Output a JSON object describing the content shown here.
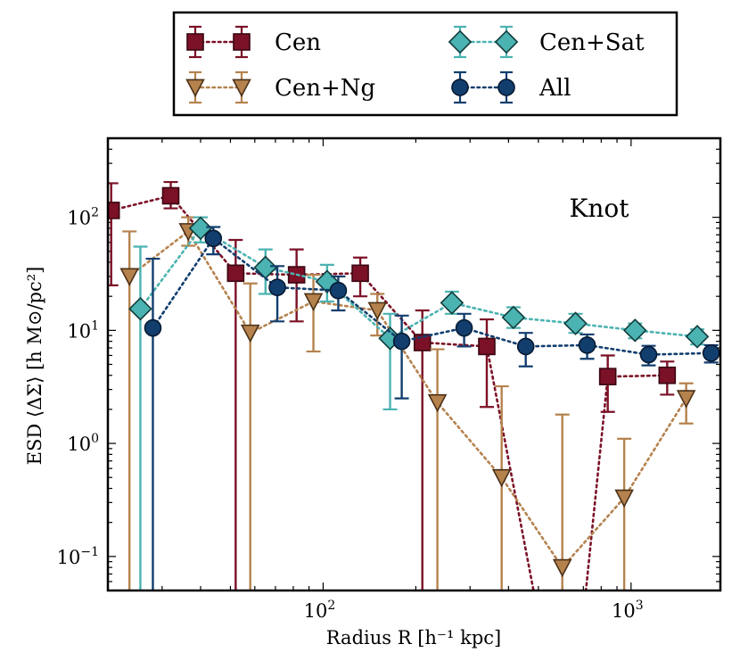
{
  "chart_data": {
    "type": "scatter",
    "title": "",
    "annotation": "Knot",
    "xlabel": "Radius R [h⁻¹ kpc]",
    "ylabel": "ESD ⟨ΔΣ⟩ [h M⊙/pc²]",
    "xscale": "log",
    "yscale": "log",
    "xlim": [
      20,
      1950
    ],
    "ylim": [
      0.05,
      500
    ],
    "x_tick_labels": [
      {
        "value": 100,
        "base": "10",
        "exp": "2"
      },
      {
        "value": 1000,
        "base": "10",
        "exp": "3"
      }
    ],
    "y_tick_labels": [
      {
        "value": 0.1,
        "base": "10",
        "exp": "−1"
      },
      {
        "value": 1,
        "base": "10",
        "exp": "0"
      },
      {
        "value": 10,
        "base": "10",
        "exp": "1"
      },
      {
        "value": 100,
        "base": "10",
        "exp": "2"
      }
    ],
    "legend_position": "top, outside plot",
    "series": [
      {
        "name": "Cen",
        "marker": "square",
        "color": "#7b1126",
        "edge": "#3a0612",
        "points": [
          {
            "x": 20.5,
            "y": 115,
            "lo": 25,
            "hi": 200
          },
          {
            "x": 32,
            "y": 155,
            "lo": 120,
            "hi": 205
          },
          {
            "x": 52,
            "y": 32,
            "lo": 0.02,
            "hi": 63
          },
          {
            "x": 82,
            "y": 31,
            "lo": 12,
            "hi": 52
          },
          {
            "x": 132,
            "y": 32,
            "lo": 20,
            "hi": 44
          },
          {
            "x": 210,
            "y": 7.8,
            "lo": 0.02,
            "hi": 15
          },
          {
            "x": 340,
            "y": 7.2,
            "lo": 2.1,
            "hi": 12.5
          },
          {
            "x": 840,
            "y": 3.9,
            "lo": 1.9,
            "hi": 6
          },
          {
            "x": 1310,
            "y": 4,
            "lo": 2.7,
            "hi": 5.3
          }
        ],
        "line": [
          [
            20.5,
            115
          ],
          [
            32,
            155
          ],
          [
            52,
            32
          ],
          [
            82,
            31
          ],
          [
            132,
            32
          ],
          [
            210,
            7.8
          ],
          [
            340,
            7.2
          ],
          [
            500,
            0.03
          ],
          [
            700,
            0.03
          ],
          [
            840,
            3.9
          ],
          [
            1310,
            4
          ]
        ]
      },
      {
        "name": "Cen+Ng",
        "marker": "triangle-down",
        "color": "#b5824e",
        "edge": "#4a3017",
        "points": [
          {
            "x": 23.5,
            "y": 30,
            "lo": 0.02,
            "hi": 75
          },
          {
            "x": 36.5,
            "y": 75,
            "lo": 56,
            "hi": 100
          },
          {
            "x": 58,
            "y": 9.5,
            "lo": 0.02,
            "hi": 26
          },
          {
            "x": 93,
            "y": 18,
            "lo": 6.5,
            "hi": 31
          },
          {
            "x": 150,
            "y": 15,
            "lo": 9,
            "hi": 21
          },
          {
            "x": 235,
            "y": 2.3,
            "lo": 0.02,
            "hi": 6.8
          },
          {
            "x": 380,
            "y": 0.5,
            "lo": 0.02,
            "hi": 3.2
          },
          {
            "x": 598,
            "y": 0.08,
            "lo": 0.02,
            "hi": 1.8
          },
          {
            "x": 950,
            "y": 0.33,
            "lo": 0.02,
            "hi": 1.1
          },
          {
            "x": 1510,
            "y": 2.5,
            "lo": 1.5,
            "hi": 3.4
          }
        ],
        "line": [
          [
            23.5,
            30
          ],
          [
            36.5,
            75
          ],
          [
            58,
            9.5
          ],
          [
            93,
            18
          ],
          [
            150,
            15
          ],
          [
            235,
            2.3
          ],
          [
            380,
            0.5
          ],
          [
            598,
            0.08
          ],
          [
            950,
            0.33
          ],
          [
            1510,
            2.5
          ]
        ]
      },
      {
        "name": "Cen+Sat",
        "marker": "diamond",
        "color": "#4bb3b2",
        "edge": "#123c3c",
        "points": [
          {
            "x": 25.5,
            "y": 15.5,
            "lo": 0.02,
            "hi": 55
          },
          {
            "x": 40,
            "y": 80,
            "lo": 60,
            "hi": 100
          },
          {
            "x": 65,
            "y": 36,
            "lo": 21,
            "hi": 52
          },
          {
            "x": 103,
            "y": 27,
            "lo": 18,
            "hi": 38
          },
          {
            "x": 165,
            "y": 8.5,
            "lo": 2,
            "hi": 14
          },
          {
            "x": 262,
            "y": 17.5,
            "lo": 14,
            "hi": 22
          },
          {
            "x": 415,
            "y": 13,
            "lo": 10.5,
            "hi": 16
          },
          {
            "x": 660,
            "y": 11.5,
            "lo": 9.5,
            "hi": 14
          },
          {
            "x": 1030,
            "y": 10,
            "lo": 8.5,
            "hi": 11.5
          },
          {
            "x": 1640,
            "y": 8.8,
            "lo": 7.5,
            "hi": 10.2
          }
        ],
        "line": [
          [
            25.5,
            15.5
          ],
          [
            40,
            80
          ],
          [
            65,
            36
          ],
          [
            103,
            27
          ],
          [
            165,
            8.5
          ],
          [
            262,
            17.5
          ],
          [
            415,
            13
          ],
          [
            660,
            11.5
          ],
          [
            1030,
            10
          ],
          [
            1640,
            8.8
          ]
        ]
      },
      {
        "name": "All",
        "marker": "circle",
        "color": "#123e6e",
        "edge": "#061a33",
        "points": [
          {
            "x": 28,
            "y": 10.5,
            "lo": 0.02,
            "hi": 43
          },
          {
            "x": 44,
            "y": 65,
            "lo": 47,
            "hi": 82
          },
          {
            "x": 71,
            "y": 24,
            "lo": 12,
            "hi": 37
          },
          {
            "x": 112,
            "y": 22.5,
            "lo": 15,
            "hi": 30
          },
          {
            "x": 180,
            "y": 8,
            "lo": 2.5,
            "hi": 13.5
          },
          {
            "x": 287,
            "y": 10.5,
            "lo": 7.2,
            "hi": 14
          },
          {
            "x": 455,
            "y": 7.2,
            "lo": 4.8,
            "hi": 9.5
          },
          {
            "x": 720,
            "y": 7.4,
            "lo": 5.6,
            "hi": 9.2
          },
          {
            "x": 1140,
            "y": 6.1,
            "lo": 4.9,
            "hi": 7.3
          },
          {
            "x": 1820,
            "y": 6.3,
            "lo": 5.2,
            "hi": 7.4
          }
        ],
        "line": [
          [
            28,
            10.5
          ],
          [
            44,
            65
          ],
          [
            71,
            24
          ],
          [
            112,
            22.5
          ],
          [
            180,
            8
          ],
          [
            287,
            10.5
          ],
          [
            455,
            7.2
          ],
          [
            720,
            7.4
          ],
          [
            1140,
            6.1
          ],
          [
            1820,
            6.3
          ]
        ]
      }
    ]
  }
}
